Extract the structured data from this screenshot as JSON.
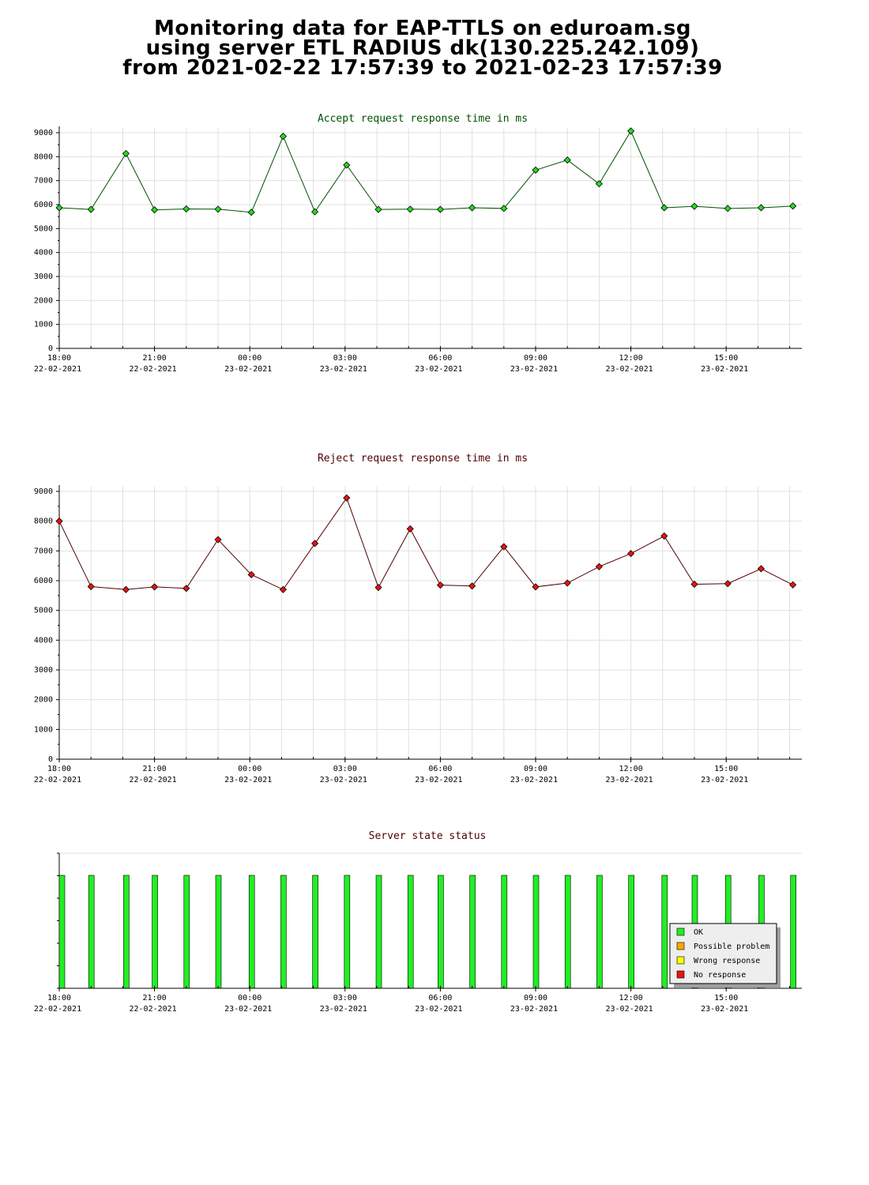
{
  "header": {
    "line1": "Monitoring data for EAP-TTLS on eduroam.sg",
    "line2": "using server ETL RADIUS dk(130.225.242.109)",
    "line3": "from 2021-02-22 17:57:39 to 2021-02-23 17:57:39"
  },
  "x_axis": {
    "ticks": [
      {
        "time": "18:00",
        "date": "22-02-2021",
        "h": 0
      },
      {
        "time": "21:00",
        "date": "22-02-2021",
        "h": 3
      },
      {
        "time": "00:00",
        "date": "23-02-2021",
        "h": 6
      },
      {
        "time": "03:00",
        "date": "23-02-2021",
        "h": 9
      },
      {
        "time": "06:00",
        "date": "23-02-2021",
        "h": 12
      },
      {
        "time": "09:00",
        "date": "23-02-2021",
        "h": 15
      },
      {
        "time": "12:00",
        "date": "23-02-2021",
        "h": 18
      },
      {
        "time": "15:00",
        "date": "23-02-2021",
        "h": 21
      }
    ]
  },
  "chart_data": [
    {
      "type": "line",
      "title": "Accept request response time in ms",
      "title_color": "#005000",
      "xlabel": "",
      "ylabel": "",
      "ylim": [
        0,
        9000
      ],
      "yticks": [
        0,
        1000,
        2000,
        3000,
        4000,
        5000,
        6000,
        7000,
        8000,
        9000
      ],
      "grid": true,
      "marker_color": "#22dd22",
      "line_color": "#005000",
      "x": [
        0,
        1,
        2.1,
        3,
        4,
        5,
        6.05,
        7.05,
        8.05,
        9.05,
        10.05,
        11.05,
        12,
        13,
        14,
        15,
        16,
        17,
        18,
        19.05,
        20,
        21.05,
        22.1,
        23.1
      ],
      "values": [
        5870,
        5800,
        8130,
        5780,
        5820,
        5810,
        5680,
        8850,
        5700,
        7650,
        5800,
        5810,
        5800,
        5870,
        5840,
        7440,
        7860,
        6870,
        9070,
        5870,
        5930,
        5840,
        5870,
        5940
      ]
    },
    {
      "type": "line",
      "title": "Reject request response time in ms",
      "title_color": "#500000",
      "xlabel": "",
      "ylabel": "",
      "ylim": [
        0,
        9000
      ],
      "yticks": [
        0,
        1000,
        2000,
        3000,
        4000,
        5000,
        6000,
        7000,
        8000,
        9000
      ],
      "grid": true,
      "marker_color": "#ee1111",
      "line_color": "#500000",
      "x": [
        0,
        1,
        2.1,
        3,
        4,
        5,
        6.05,
        7.05,
        8.05,
        9.05,
        10.05,
        11.05,
        12,
        13,
        14,
        15,
        16,
        17,
        18,
        19.05,
        20,
        21.05,
        22.1,
        23.1
      ],
      "values": [
        8000,
        5800,
        5700,
        5790,
        5740,
        7380,
        6200,
        5700,
        7250,
        8780,
        5770,
        7740,
        5850,
        5820,
        7140,
        5790,
        5920,
        6470,
        6910,
        7500,
        5880,
        5900,
        6400,
        5860
      ]
    },
    {
      "type": "bar",
      "title": "Server state status",
      "title_color": "#500000",
      "xlabel": "",
      "ylabel": "",
      "grid": false,
      "x": [
        0,
        1,
        2.1,
        3,
        4,
        5,
        6.05,
        7.05,
        8.05,
        9.05,
        10.05,
        11.05,
        12,
        13,
        14,
        15,
        16,
        17,
        18,
        19.05,
        20,
        21.05,
        22.1,
        23.1
      ],
      "states": [
        "OK",
        "OK",
        "OK",
        "OK",
        "OK",
        "OK",
        "OK",
        "OK",
        "OK",
        "OK",
        "OK",
        "OK",
        "OK",
        "OK",
        "OK",
        "OK",
        "OK",
        "OK",
        "OK",
        "OK",
        "OK",
        "OK",
        "OK",
        "OK"
      ],
      "legend_position": "bottom-right",
      "legend": [
        {
          "label": "OK",
          "color": "#22ee22"
        },
        {
          "label": "Possible problem",
          "color": "#ffa500"
        },
        {
          "label": "Wrong response",
          "color": "#ffff00"
        },
        {
          "label": "No response",
          "color": "#ee1111"
        }
      ]
    }
  ]
}
